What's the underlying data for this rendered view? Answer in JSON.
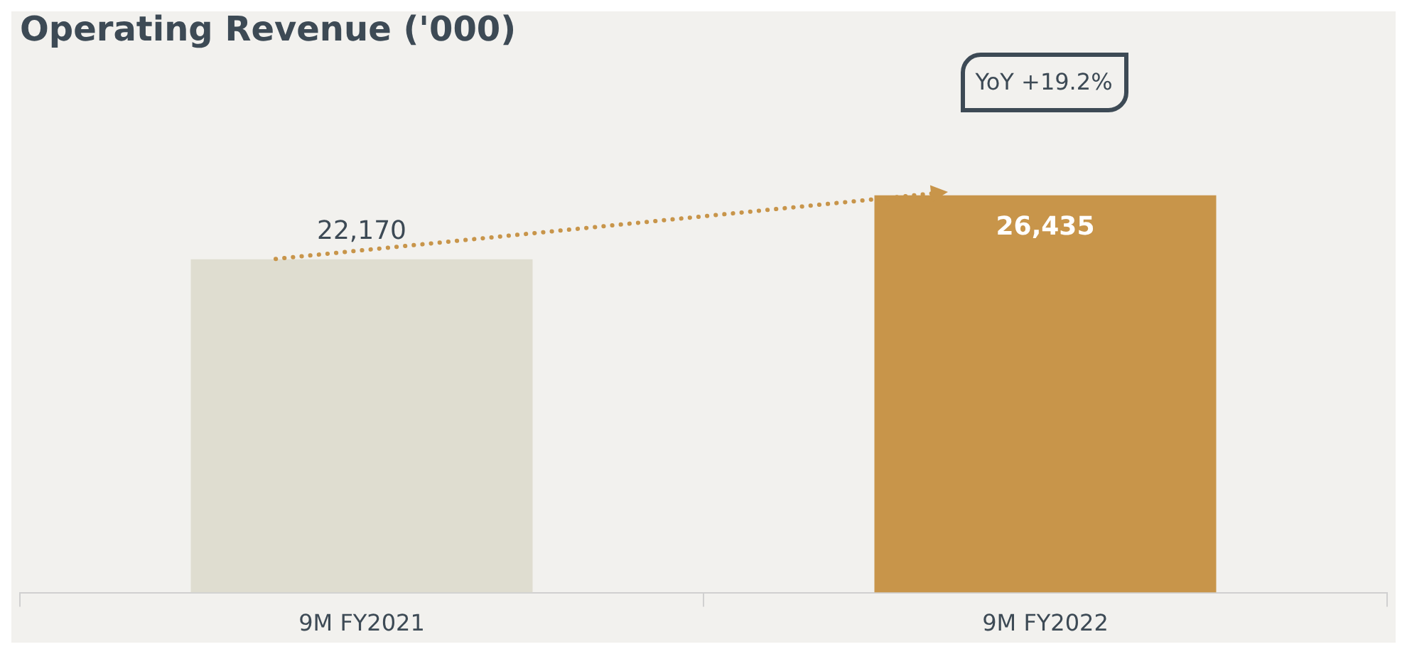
{
  "chart_data": {
    "type": "bar",
    "title": "Operating Revenue ('000)",
    "categories": [
      "9M FY2021",
      "9M FY2022"
    ],
    "values": [
      22170,
      26435
    ],
    "colors": [
      "#dfddd0",
      "#c8954a"
    ],
    "value_labels": [
      "22,170",
      "26,435"
    ],
    "grid": false,
    "legend": false,
    "annotations": [
      "YoY +19.2%"
    ]
  }
}
